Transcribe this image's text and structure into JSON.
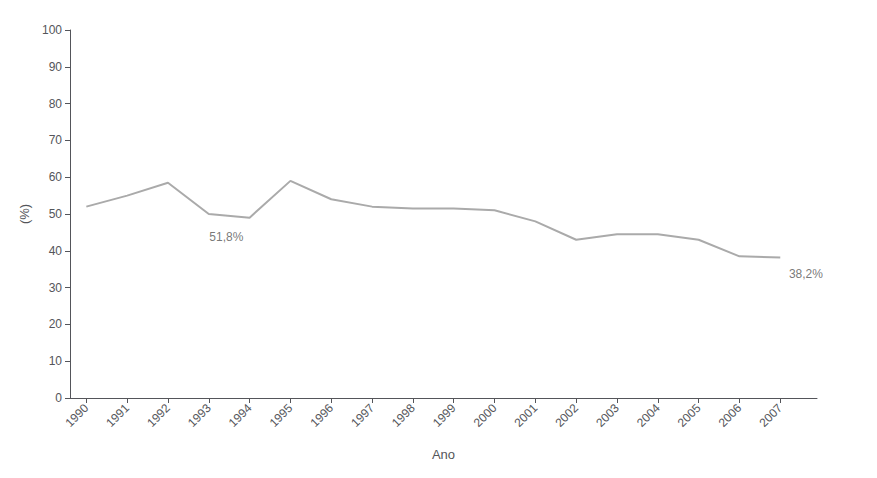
{
  "chart_data": {
    "type": "line",
    "xlabel": "Ano",
    "ylabel": "(%)",
    "x": [
      1990,
      1991,
      1992,
      1993,
      1994,
      1995,
      1996,
      1997,
      1998,
      1999,
      2000,
      2001,
      2002,
      2003,
      2004,
      2005,
      2006,
      2007
    ],
    "values": [
      52.0,
      55.0,
      58.5,
      50.0,
      49.0,
      59.0,
      54.0,
      52.0,
      51.5,
      51.5,
      51.0,
      48.0,
      43.0,
      44.5,
      44.5,
      43.0,
      38.5,
      38.2
    ],
    "color": "#aaaaaa",
    "xlim": [
      1989.6,
      2007.9
    ],
    "xticks": [
      1990,
      1991,
      1992,
      1993,
      1994,
      1995,
      1996,
      1997,
      1998,
      1999,
      2000,
      2001,
      2002,
      2003,
      2004,
      2005,
      2006,
      2007
    ],
    "ylim": [
      0,
      100
    ],
    "yticks": [
      0,
      10,
      20,
      30,
      40,
      50,
      60,
      70,
      80,
      90,
      100
    ],
    "grid": false,
    "annotations": [
      {
        "text": "51,8%",
        "x": 1993,
        "y": 42.0
      },
      {
        "text": "38,2%",
        "x": 2007.2,
        "y": 32.0
      }
    ]
  }
}
